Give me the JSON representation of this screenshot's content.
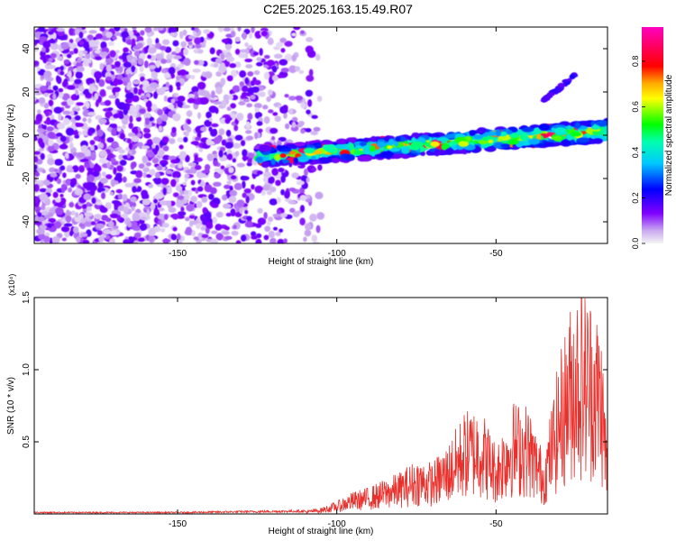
{
  "title": "C2E5.2025.163.15.49.R07",
  "colors": {
    "snr_line": "#e8302c",
    "colormap": [
      "#f2f2f2",
      "#c9a8f0",
      "#8000ff",
      "#0000ff",
      "#00ffff",
      "#00ff00",
      "#ffff00",
      "#ff0000",
      "#ff00ff"
    ]
  },
  "chart_data": [
    {
      "type": "heatmap",
      "title": "C2E5.2025.163.15.49.R07",
      "xlabel": "Height of straight line (km)",
      "ylabel": "Frequency (Hz)",
      "xlim": [
        -195,
        -15
      ],
      "ylim": [
        -50,
        50
      ],
      "x_ticks": [
        -150,
        -100,
        -50
      ],
      "y_ticks": [
        -40,
        -20,
        0,
        20,
        40
      ],
      "colorbar": {
        "label": "Normalized spectral amplitude",
        "range": [
          0.0,
          0.95
        ],
        "ticks": [
          0.0,
          0.2,
          0.4,
          0.6,
          0.8
        ]
      },
      "features": {
        "noise_region_x": [
          -195,
          -105
        ],
        "signal_band": {
          "x_start": -125,
          "x_end": -15,
          "freq_start": -10,
          "freq_end": 2
        },
        "upper_branch": {
          "x_start": -35,
          "x_end": -25,
          "freq_start": 16,
          "freq_end": 28
        }
      }
    },
    {
      "type": "line",
      "xlabel": "Height of straight line (km)",
      "ylabel": "SNR (10 * v/v)",
      "scale_label": "(x10⁴)",
      "xlim": [
        -195,
        -15
      ],
      "ylim": [
        0,
        1.5
      ],
      "x_ticks": [
        -150,
        -100,
        -50
      ],
      "y_ticks": [
        0.5,
        1.0,
        1.5
      ],
      "y_tick_labels": [
        "0.5",
        "1.0",
        "1.5"
      ],
      "series": [
        {
          "x": [
            -195,
            -150,
            -110,
            -105,
            -100,
            -95,
            -90,
            -85,
            -80,
            -75,
            -70,
            -65,
            -60,
            -55,
            -50,
            -45,
            -40,
            -35,
            -30,
            -25,
            -20,
            -17,
            -15
          ],
          "y": [
            0.01,
            0.01,
            0.02,
            0.04,
            0.08,
            0.14,
            0.17,
            0.22,
            0.27,
            0.35,
            0.33,
            0.45,
            0.65,
            0.7,
            0.45,
            0.72,
            0.7,
            0.38,
            1.02,
            1.48,
            1.4,
            1.22,
            0.45
          ],
          "color": "#e8302c"
        }
      ]
    }
  ]
}
